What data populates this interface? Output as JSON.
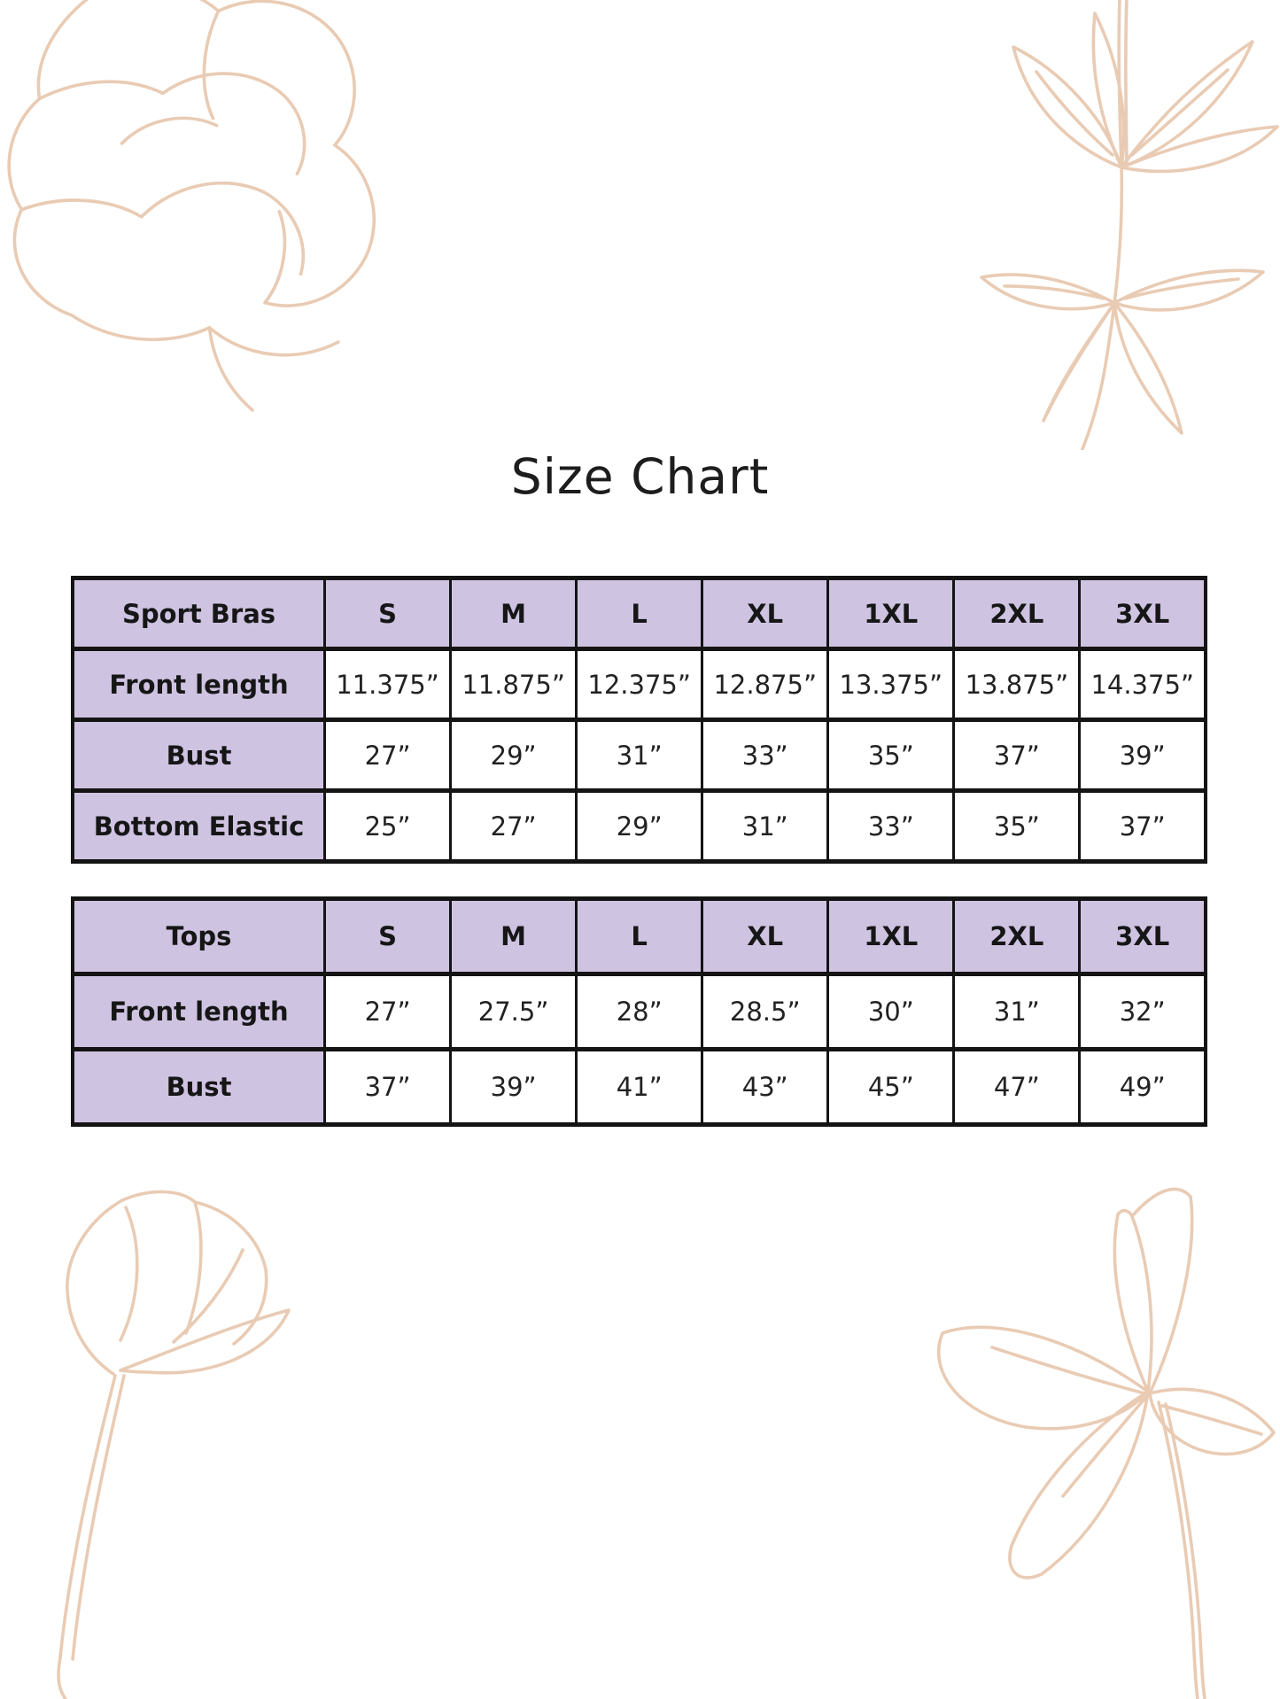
{
  "page": {
    "title": "Size Chart"
  },
  "colors": {
    "background": "#ffffff",
    "table_header_purple": "#cfc3e2",
    "table_border": "#141414",
    "text": "#1d1d1d",
    "floral_line_art": "#e9cbb4"
  },
  "size_tables": [
    {
      "title_cell": "Sport Bras",
      "size_columns": [
        "S",
        "M",
        "L",
        "XL",
        "1XL",
        "2XL",
        "3XL"
      ],
      "rows": [
        {
          "label": "Front length",
          "values": [
            "11.375”",
            "11.875”",
            "12.375”",
            "12.875”",
            "13.375”",
            "13.875”",
            "14.375”"
          ]
        },
        {
          "label": "Bust",
          "values": [
            "27”",
            "29”",
            "31”",
            "33”",
            "35”",
            "37”",
            "39”"
          ]
        },
        {
          "label": "Bottom Elastic",
          "values": [
            "25”",
            "27”",
            "29”",
            "31”",
            "33”",
            "35”",
            "37”"
          ]
        }
      ]
    },
    {
      "title_cell": "Tops",
      "size_columns": [
        "S",
        "M",
        "L",
        "XL",
        "1XL",
        "2XL",
        "3XL"
      ],
      "rows": [
        {
          "label": "Front length",
          "values": [
            "27”",
            "27.5”",
            "28”",
            "28.5”",
            "30”",
            "31”",
            "32”"
          ]
        },
        {
          "label": "Bust",
          "values": [
            "37”",
            "39”",
            "41”",
            "43”",
            "45”",
            "47”",
            "49”"
          ]
        }
      ]
    }
  ],
  "decorations": [
    "peony-line-art-top-left",
    "leaf-branch-line-art-top-right",
    "tulip-line-art-bottom-left",
    "open-flower-line-art-bottom-right"
  ]
}
